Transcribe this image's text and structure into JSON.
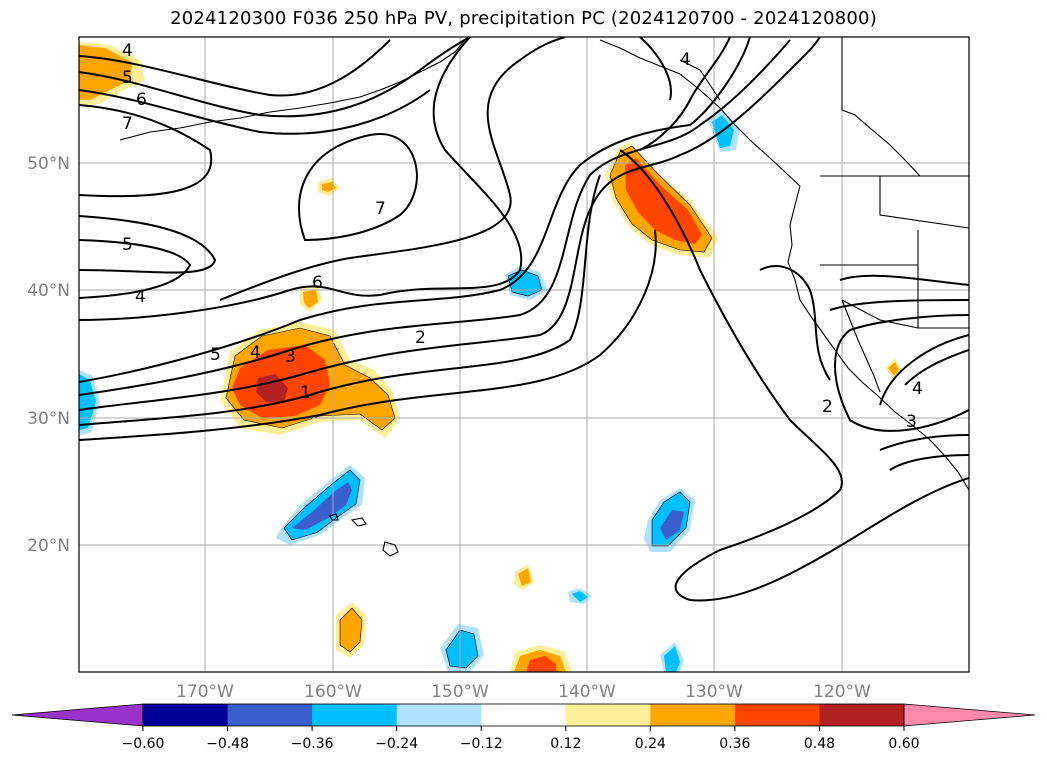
{
  "title": "2024120300 F036 250 hPa PV, precipitation PC (2024120700 - 2024120800)",
  "lat_labels": [
    "50°N",
    "40°N",
    "30°N",
    "20°N"
  ],
  "lon_labels": [
    "170°W",
    "160°W",
    "150°W",
    "140°W",
    "130°W",
    "120°W"
  ],
  "colorbar": {
    "ticks": [
      "−0.60",
      "−0.48",
      "−0.36",
      "−0.24",
      "−0.12",
      "0.12",
      "0.24",
      "0.36",
      "0.48",
      "0.60"
    ],
    "colors": [
      "#9933cc",
      "#000099",
      "#3a5fcd",
      "#00bfff",
      "#b0e2ff",
      "#ffffff",
      "#ffee99",
      "#ffa500",
      "#ff4500",
      "#b22222",
      "#ff88aa"
    ]
  },
  "contour_labels": [
    "4",
    "5",
    "6",
    "7",
    "5",
    "4",
    "7",
    "6",
    "5",
    "4",
    "3",
    "1",
    "2",
    "4",
    "2",
    "4",
    "3"
  ],
  "line_color": "#000000",
  "grid_color": "#aaaaaa"
}
